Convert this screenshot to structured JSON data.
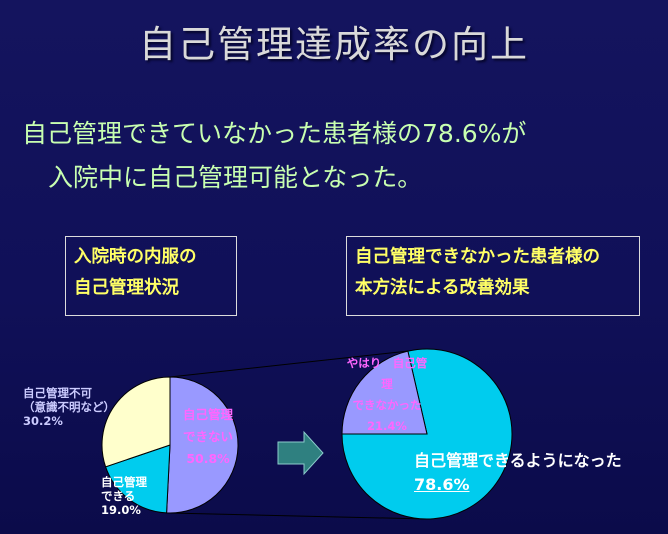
{
  "title": "自己管理達成率の向上",
  "subtitle": {
    "line1": "自己管理できていなかった患者様の78.6%が",
    "line2": "入院中に自己管理可能となった。"
  },
  "box_left": {
    "line1": "入院時の内服の",
    "line2": "自己管理状況"
  },
  "box_right": {
    "line1": "自己管理できなかった患者様の",
    "line2": "本方法による改善効果"
  },
  "chart_data": [
    {
      "type": "pie",
      "slices": [
        {
          "label": "自己管理できない",
          "value": 50.8,
          "color": "#9999ff",
          "label_lines": [
            "自己管理",
            "できない",
            "50.8%"
          ]
        },
        {
          "label": "自己管理できる",
          "value": 19.0,
          "color": "#00ccee",
          "label_lines": [
            "自己管理",
            "できる",
            "19.0%"
          ]
        },
        {
          "label": "自己管理不可（意識不明など）",
          "value": 30.2,
          "color": "#ffffcc",
          "label_lines": [
            "自己管理不可",
            "（意識不明など）",
            "30.2%"
          ]
        }
      ],
      "label_colors": {
        "cannot": "#ff66ff",
        "can": "#ffffff",
        "impossible": "#ccccff"
      }
    },
    {
      "type": "pie",
      "slices": [
        {
          "label": "自己管理できるようになった",
          "value": 78.6,
          "color": "#00ccee",
          "label_lines": [
            "自己管理できるようになった",
            "78.6%"
          ]
        },
        {
          "label": "やはり自己管理できなかった",
          "value": 21.4,
          "color": "#9999ff",
          "label_lines": [
            "やはり　自己管理",
            "できなかった",
            "21.4%"
          ]
        }
      ],
      "label_colors": {
        "improved": "#ffffff",
        "still_cannot": "#ff66ff"
      }
    }
  ],
  "colors": {
    "title": "#d9d9d9",
    "subtitle": "#c8ffb0",
    "box_text": "#ffff66",
    "arrow": "#2f8080"
  },
  "icons": {
    "arrow": "right-arrow-icon"
  }
}
